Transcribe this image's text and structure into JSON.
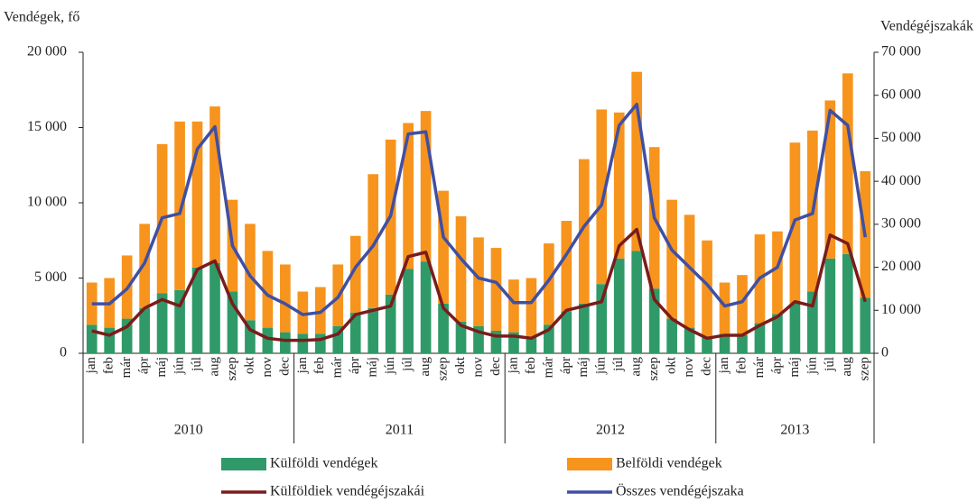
{
  "chart_data": {
    "type": "bar",
    "y_label": "Vendégek, fő",
    "y2_label": "Vendégéjszakák",
    "categories": [
      "jan",
      "feb",
      "már",
      "ápr",
      "máj",
      "jún",
      "júl",
      "aug",
      "szep",
      "okt",
      "nov",
      "dec",
      "jan",
      "feb",
      "már",
      "ápr",
      "máj",
      "jún",
      "júl",
      "aug",
      "szep",
      "okt",
      "nov",
      "dec",
      "jan",
      "feb",
      "már",
      "ápr",
      "máj",
      "jún",
      "júl",
      "aug",
      "szep",
      "okt",
      "nov",
      "dec",
      "jan",
      "feb",
      "már",
      "ápr",
      "máj",
      "jún",
      "júl",
      "aug",
      "szep"
    ],
    "groups": [
      "2010",
      "2011",
      "2012",
      "2013"
    ],
    "series": [
      {
        "name": "Külföldi vendégek",
        "color": "#2f9a68",
        "type": "bar",
        "values": [
          1900,
          1700,
          2300,
          3000,
          4000,
          4200,
          5700,
          6000,
          4100,
          2200,
          1700,
          1400,
          1300,
          1300,
          1800,
          2700,
          3000,
          3900,
          5600,
          6100,
          3300,
          2100,
          1800,
          1500,
          1400,
          1100,
          1900,
          2800,
          3300,
          4600,
          6300,
          6800,
          4300,
          2300,
          1700,
          1100,
          1300,
          1200,
          2000,
          2600,
          3300,
          4100,
          6300,
          6600,
          3700
        ]
      },
      {
        "name": "Belföldi vendégek",
        "color": "#f7941d",
        "type": "bar",
        "values": [
          2800,
          3300,
          4200,
          5600,
          9900,
          11200,
          9700,
          10400,
          6100,
          6400,
          5100,
          4500,
          2800,
          3100,
          4100,
          5100,
          8900,
          10300,
          9700,
          10000,
          7500,
          7000,
          5900,
          5500,
          3500,
          3900,
          5400,
          6000,
          9600,
          11600,
          9700,
          11900,
          9400,
          7900,
          7500,
          6400,
          3400,
          4000,
          5900,
          5500,
          10700,
          10700,
          10500,
          12000,
          8400
        ]
      },
      {
        "name": "Külföldiek vendégéjszakái",
        "color": "#7a1c1c",
        "type": "line",
        "axis": "y2",
        "values": [
          5200,
          4200,
          6200,
          10500,
          12500,
          11000,
          19500,
          21500,
          11500,
          5500,
          3500,
          3000,
          3000,
          3200,
          4500,
          9000,
          10000,
          11000,
          22500,
          23500,
          10500,
          6500,
          5000,
          4000,
          4000,
          3500,
          5500,
          10000,
          11000,
          12000,
          25000,
          28800,
          12500,
          8000,
          5500,
          3500,
          4200,
          4200,
          6500,
          8500,
          12000,
          11000,
          27500,
          25500,
          12000
        ]
      },
      {
        "name": "Összes vendégéjszaka",
        "color": "#3f4fa3",
        "type": "line",
        "axis": "y2",
        "values": [
          11500,
          11500,
          15000,
          21000,
          31500,
          32500,
          47500,
          52700,
          25000,
          18000,
          13500,
          11500,
          9000,
          9500,
          13000,
          20000,
          25000,
          32000,
          51000,
          51500,
          27000,
          22000,
          17500,
          16500,
          11800,
          11800,
          17000,
          23000,
          29500,
          34500,
          53000,
          57900,
          31500,
          24000,
          20000,
          16000,
          11000,
          12000,
          17500,
          20000,
          31000,
          32500,
          56500,
          53000,
          27000
        ]
      }
    ],
    "ylim": [
      0,
      20000
    ],
    "yticks": [
      0,
      {
        "value": 5000,
        "label": "5 000"
      },
      {
        "value": 10000,
        "label": "10 000"
      },
      {
        "value": 15000,
        "label": "15 000"
      },
      {
        "value": 20000,
        "label": "20 000"
      }
    ],
    "y2lim": [
      0,
      70000
    ],
    "y2ticks": [
      0,
      {
        "value": 10000,
        "label": "10 000"
      },
      {
        "value": 20000,
        "label": "20 000"
      },
      {
        "value": 30000,
        "label": "30 000"
      },
      {
        "value": 40000,
        "label": "40 000"
      },
      {
        "value": 50000,
        "label": "50 000"
      },
      {
        "value": 60000,
        "label": "60 000"
      },
      {
        "value": 70000,
        "label": "70 000"
      }
    ],
    "grid": false
  }
}
